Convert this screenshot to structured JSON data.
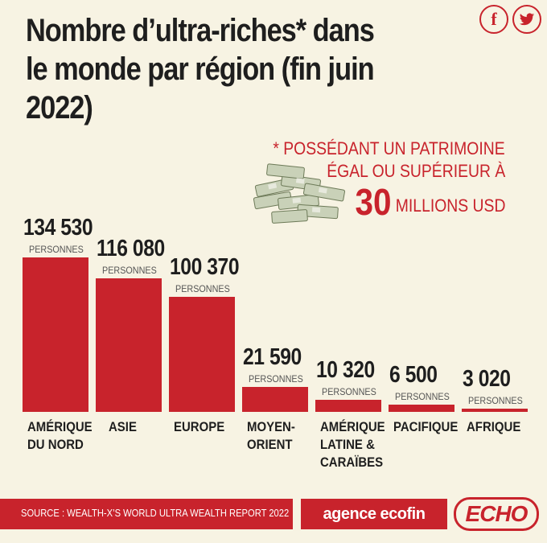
{
  "title_line1": "Nombre d’ultra-riches* dans",
  "title_line2": "le monde par région (fin juin 2022)",
  "social": {
    "facebook": "f",
    "twitter": "🐦"
  },
  "note": {
    "line1": "* POSSÉDANT UN PATRIMOINE",
    "line2": "ÉGAL OU SUPÉRIEUR À",
    "amount": "30",
    "unit": "MILLIONS USD"
  },
  "chart_data": {
    "type": "bar",
    "title": "Nombre d’ultra-riches* dans le monde par région (fin juin 2022)",
    "categories": [
      "AMÉRIQUE DU NORD",
      "ASIE",
      "EUROPE",
      "MOYEN-ORIENT",
      "AMÉRIQUE LATINE & CARAÏBES",
      "PACIFIQUE",
      "AFRIQUE"
    ],
    "category_lines": [
      [
        "AMÉRIQUE",
        "DU NORD"
      ],
      [
        "ASIE"
      ],
      [
        "EUROPE"
      ],
      [
        "MOYEN-",
        "ORIENT"
      ],
      [
        "AMÉRIQUE",
        "LATINE &",
        "CARAÏBES"
      ],
      [
        "PACIFIQUE"
      ],
      [
        "AFRIQUE"
      ]
    ],
    "values": [
      134530,
      116080,
      100370,
      21590,
      10320,
      6500,
      3020
    ],
    "value_labels": [
      "134 530",
      "116 080",
      "100 370",
      "21 590",
      "10 320",
      "6 500",
      "3 020"
    ],
    "unit_label": "PERSONNES",
    "bar_color": "#c8232c",
    "xlabel": "",
    "ylabel": "",
    "grid": false
  },
  "footer": {
    "source": "SOURCE : WEALTH-X’S WORLD ULTRA WEALTH REPORT 2022",
    "agence": "agence ecofin",
    "echo": "ECHO"
  },
  "colors": {
    "accent": "#c8232c",
    "background": "#f7f3e3",
    "text": "#1e1e1e"
  }
}
